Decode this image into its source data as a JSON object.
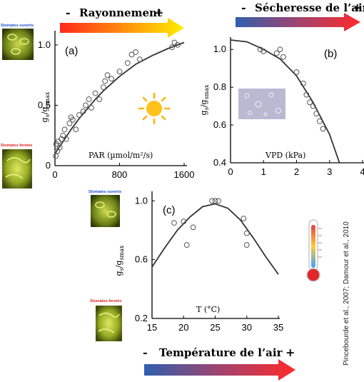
{
  "header": {
    "rayonnement": {
      "minus": "-",
      "label": "Rayonnement",
      "plus": "+"
    },
    "secheresse": {
      "minus": "-",
      "label": "Sécheresse de l’air",
      "plus": "+"
    },
    "temperature": {
      "minus": "-",
      "label": "Température de l’air",
      "plus": "+"
    }
  },
  "stomata_labels": {
    "open_a": "Stomates ouverts",
    "closed_a": "Stomates fermés",
    "open_c": "Stomates ouverts",
    "closed_c": "Stomates fermés"
  },
  "citation": "Pincebourde et al., 2007; Damour et al., 2010",
  "colors": {
    "arrow_yellow": [
      "#ff2a1a",
      "#ffee00"
    ],
    "arrow_blue_red": [
      "#2f5fae",
      "#ff2a2a"
    ],
    "stomata_green": "#9bb52a"
  },
  "chart_data": [
    {
      "type": "scatter",
      "panel_label": "(a)",
      "xlabel": "PAR (µmol/m²/s)",
      "ylabel": "gs/gsmax",
      "xlim": [
        0,
        1600
      ],
      "ylim": [
        0,
        1.1
      ],
      "xticks": [
        "0",
        "800",
        "1600"
      ],
      "yticks": [
        "0",
        "0.5",
        "1.0"
      ],
      "x": [
        10,
        15,
        30,
        40,
        60,
        80,
        100,
        120,
        140,
        180,
        200,
        220,
        260,
        300,
        350,
        380,
        420,
        450,
        500,
        550,
        600,
        620,
        650,
        700,
        800,
        900,
        950,
        1000,
        1050,
        1450,
        1480,
        1520
      ],
      "y": [
        0.08,
        0.18,
        0.12,
        0.2,
        0.15,
        0.22,
        0.25,
        0.3,
        0.22,
        0.35,
        0.4,
        0.38,
        0.3,
        0.42,
        0.45,
        0.5,
        0.55,
        0.48,
        0.6,
        0.55,
        0.65,
        0.7,
        0.75,
        0.72,
        0.78,
        0.85,
        0.92,
        0.94,
        0.88,
        0.98,
        1.02,
        1.0
      ],
      "curve_x": [
        0,
        100,
        200,
        300,
        400,
        500,
        600,
        800,
        1000,
        1200,
        1400,
        1600
      ],
      "curve_y": [
        0.1,
        0.2,
        0.3,
        0.39,
        0.47,
        0.55,
        0.62,
        0.74,
        0.84,
        0.91,
        0.97,
        1.02
      ]
    },
    {
      "type": "scatter",
      "panel_label": "(b)",
      "xlabel": "VPD (kPa)",
      "ylabel": "gs/gsmax",
      "xlim": [
        0,
        4
      ],
      "ylim": [
        0.4,
        1.05
      ],
      "xticks": [
        "0",
        "1",
        "2",
        "3",
        "4"
      ],
      "yticks": [
        "0.4",
        "0.6",
        "0.8",
        "1.0"
      ],
      "x": [
        0.9,
        1.0,
        1.4,
        1.5,
        1.6,
        2.0,
        2.2,
        2.3,
        2.4,
        2.5,
        2.6,
        2.7,
        2.8
      ],
      "y": [
        1.0,
        0.99,
        0.98,
        1.0,
        0.96,
        0.88,
        0.82,
        0.76,
        0.72,
        0.7,
        0.66,
        0.62,
        0.58
      ],
      "curve_x": [
        0,
        0.5,
        1.0,
        1.5,
        2.0,
        2.5,
        3.0,
        3.3
      ],
      "curve_y": [
        1.05,
        1.04,
        1.0,
        0.95,
        0.86,
        0.72,
        0.55,
        0.4
      ]
    },
    {
      "type": "scatter",
      "panel_label": "(c)",
      "xlabel": "T (°C)",
      "ylabel": "gs/gsmax",
      "xlim": [
        15,
        35
      ],
      "ylim": [
        0.2,
        1.05
      ],
      "xticks": [
        "15",
        "20",
        "25",
        "30",
        "35"
      ],
      "yticks": [
        "0.2",
        "0.6",
        "1.0"
      ],
      "x": [
        18.5,
        20,
        20.5,
        21.5,
        24.5,
        25,
        25.5,
        29.5,
        30,
        30
      ],
      "y": [
        0.85,
        0.86,
        0.7,
        0.82,
        1.0,
        1.0,
        1.0,
        0.88,
        0.78,
        0.7
      ],
      "curve_x": [
        15,
        17,
        19,
        21,
        23,
        25,
        27,
        29,
        31,
        33,
        35
      ],
      "curve_y": [
        0.55,
        0.68,
        0.8,
        0.89,
        0.96,
        0.98,
        0.95,
        0.87,
        0.75,
        0.62,
        0.5
      ]
    }
  ]
}
